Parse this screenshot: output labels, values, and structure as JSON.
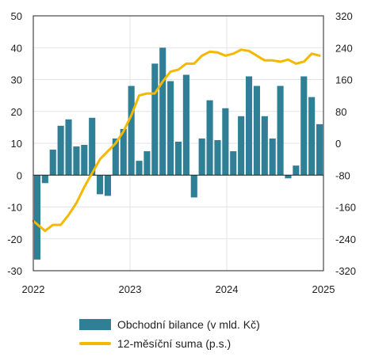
{
  "colors": {
    "bar": "#2f7f96",
    "line": "#f5b800",
    "axis": "#222222",
    "grid": "#e3e3e3"
  },
  "chart_data": {
    "type": "bar+line",
    "grid": true,
    "legend_position": "bottom",
    "y_left": {
      "min": -30,
      "max": 50,
      "ticks": [
        "50",
        "40",
        "30",
        "20",
        "10",
        "0",
        "-10",
        "-20",
        "-30"
      ]
    },
    "y_right": {
      "min": -320,
      "max": 320,
      "ticks": [
        "320",
        "240",
        "160",
        "80",
        "0",
        "-80",
        "-160",
        "-240",
        "-320"
      ]
    },
    "x_labels": [
      "2022",
      "2023",
      "2024",
      "2025"
    ],
    "series": [
      {
        "name": "Obchodní bilance (v mld. Kč)",
        "type": "bar",
        "axis": "left",
        "values": [
          -26.5,
          -2.5,
          8.0,
          15.5,
          17.5,
          9.0,
          9.5,
          18.0,
          -6.0,
          -6.5,
          11.5,
          14.5,
          28.0,
          4.5,
          7.5,
          35.0,
          40.0,
          29.5,
          10.5,
          31.5,
          -7.0,
          11.5,
          23.5,
          11.0,
          21.0,
          7.5,
          18.5,
          31.0,
          28.0,
          18.5,
          11.5,
          28.0,
          -1.0,
          3.0,
          31.0,
          24.5,
          16.0
        ]
      },
      {
        "name": "12-měsíční suma (p.s.)",
        "type": "line",
        "axis": "right",
        "values": [
          -195,
          -220,
          -205,
          -205,
          -180,
          -150,
          -110,
          -75,
          -40,
          -20,
          0,
          30,
          70,
          120,
          125,
          125,
          155,
          180,
          185,
          200,
          200,
          220,
          230,
          228,
          220,
          225,
          235,
          232,
          220,
          208,
          208,
          205,
          210,
          200,
          205,
          225,
          220
        ]
      }
    ]
  }
}
